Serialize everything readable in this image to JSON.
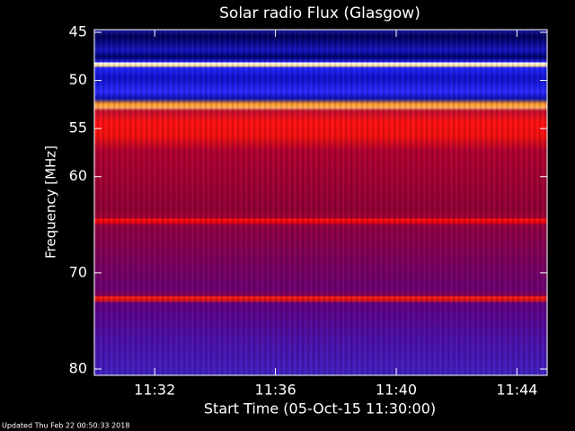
{
  "chart_data": {
    "type": "spectrogram",
    "title": "Solar radio Flux (Glasgow)",
    "x_label": "Start Time (05-Oct-15 11:30:00)",
    "y_label": "Frequency [MHz]",
    "xlim": [
      "11:30",
      "11:45"
    ],
    "xticks": [
      "11:32",
      "11:36",
      "11:40",
      "11:44"
    ],
    "ylim": [
      45,
      80
    ],
    "yticks": [
      45,
      50,
      55,
      60,
      70,
      80
    ],
    "y_inverted": true,
    "footer": "Updated Thu Feb 22 00:50:33 2018"
  }
}
